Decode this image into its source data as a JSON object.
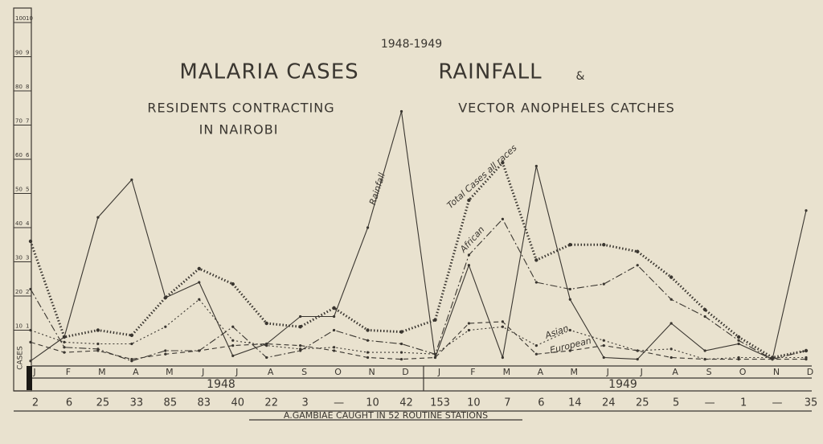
{
  "chart_data": {
    "type": "line",
    "supertitle": "1948-1949",
    "title": "MALARIA CASES",
    "title2": "RAINFALL",
    "title_amp": "&",
    "subtitle": "RESIDENTS CONTRACTING",
    "subtitle2": "IN NAIROBI",
    "subtitle3": "VECTOR ANOPHELES CATCHES",
    "ylabel": "CASES",
    "categories": [
      "J",
      "F",
      "M",
      "A",
      "M",
      "J",
      "J",
      "A",
      "S",
      "O",
      "N",
      "D",
      "J",
      "F",
      "M",
      "A",
      "M",
      "J",
      "J",
      "A",
      "S",
      "O",
      "N",
      "D"
    ],
    "years": [
      "1948",
      "1949"
    ],
    "ylim": [
      0,
      100
    ],
    "yticks": [
      10,
      20,
      30,
      40,
      50,
      60,
      70,
      80,
      90,
      100
    ],
    "y2lim": [
      0,
      10
    ],
    "y2ticks": [
      1,
      2,
      3,
      4,
      5,
      6,
      7,
      8,
      9,
      10
    ],
    "series": [
      {
        "name": "Total Cases all races",
        "color": "#3a3630",
        "style": "beaded",
        "values": [
          36,
          8,
          10,
          8.5,
          19.5,
          28,
          23.5,
          12,
          11,
          16.5,
          10,
          9.5,
          13,
          48,
          59,
          30.5,
          35,
          35,
          33,
          25.5,
          16,
          8,
          2,
          4
        ]
      },
      {
        "name": "Rainfall",
        "color": "#3a3630",
        "style": "solid",
        "axis": "y2",
        "values": [
          0.1,
          0.8,
          4.3,
          5.4,
          1.95,
          2.4,
          0.25,
          0.6,
          1.4,
          1.4,
          4,
          7.4,
          0.2,
          2.9,
          0.2,
          5.8,
          1.9,
          0.2,
          0.15,
          1.2,
          0.4,
          0.6,
          0.15,
          4.5
        ]
      },
      {
        "name": "African",
        "color": "#3a3630",
        "style": "dashdot",
        "values": [
          22,
          5,
          4.5,
          1,
          4,
          4,
          11,
          2,
          4,
          10,
          7,
          6,
          3,
          32,
          42.5,
          24,
          22,
          23.5,
          29,
          19,
          14,
          7,
          1.5,
          4
        ]
      },
      {
        "name": "Asian",
        "color": "#3a3630",
        "style": "dotted",
        "values": [
          10,
          6.5,
          6,
          6,
          11,
          19,
          7,
          5.5,
          4.5,
          5,
          3.5,
          3.5,
          3,
          10,
          11,
          5.5,
          10,
          7,
          4,
          4.5,
          1.5,
          2,
          2,
          2
        ]
      },
      {
        "name": "European",
        "color": "#3a3630",
        "style": "dashed",
        "values": [
          6.5,
          3.5,
          4,
          1.5,
          3,
          4,
          5.5,
          6,
          5.5,
          4,
          2,
          1.5,
          2,
          12,
          12.5,
          3,
          4,
          5.5,
          4,
          2,
          1.5,
          1.5,
          1.5,
          1.5
        ]
      }
    ],
    "gambiae_caught": [
      2,
      6,
      25,
      33,
      85,
      83,
      40,
      22,
      3,
      "—",
      10,
      42,
      153,
      10,
      7,
      6,
      14,
      24,
      25,
      5,
      "—",
      1,
      "—",
      35
    ],
    "gambiae_caption": "A.GAMBIAE CAUGHT IN 52 ROUTINE STATIONS"
  }
}
